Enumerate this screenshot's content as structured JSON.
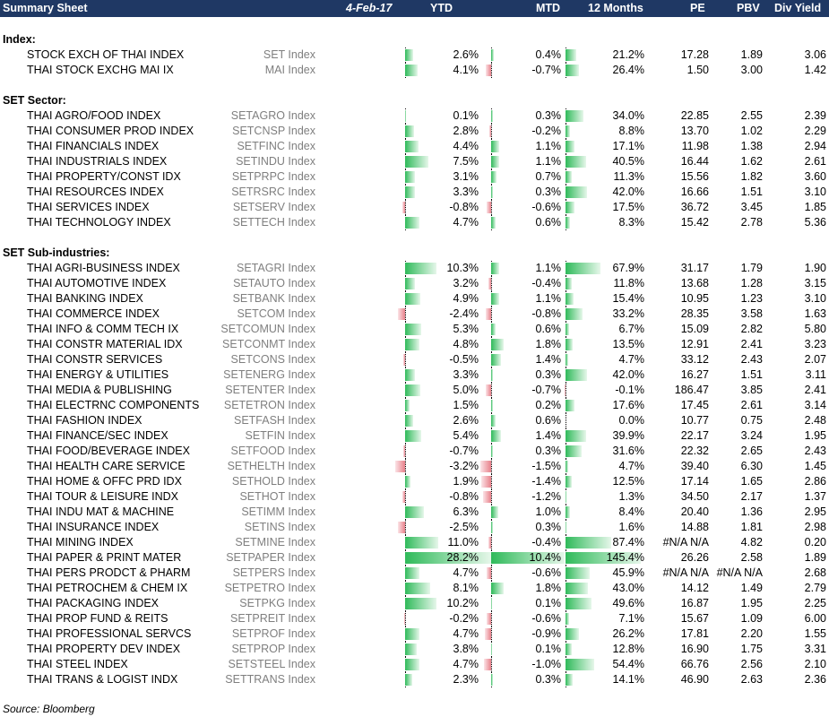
{
  "header": {
    "title": "Summary Sheet",
    "date": "4-Feb-17",
    "cols": [
      "YTD",
      "MTD",
      "12 Months",
      "PE",
      "PBV",
      "Div Yield"
    ]
  },
  "sections": [
    {
      "title": "Index:",
      "rows": [
        {
          "name": "STOCK EXCH OF THAI INDEX",
          "ticker": "SET Index",
          "ytd": "2.6%",
          "mtd": "0.4%",
          "m12": "21.2%",
          "pe": "17.28",
          "pbv": "1.89",
          "dy": "3.06",
          "ytd_v": 2.6,
          "mtd_v": 0.4,
          "m12_v": 21.2
        },
        {
          "name": "THAI STOCK EXCHG MAI IX",
          "ticker": "MAI Index",
          "ytd": "4.1%",
          "mtd": "-0.7%",
          "m12": "26.4%",
          "pe": "1.50",
          "pbv": "3.00",
          "dy": "1.42",
          "ytd_v": 4.1,
          "mtd_v": -0.7,
          "m12_v": 26.4
        }
      ]
    },
    {
      "title": "SET Sector:",
      "rows": [
        {
          "name": "THAI AGRO/FOOD INDEX",
          "ticker": "SETAGRO Index",
          "ytd": "0.1%",
          "mtd": "0.3%",
          "m12": "34.0%",
          "pe": "22.85",
          "pbv": "2.55",
          "dy": "2.39",
          "ytd_v": 0.1,
          "mtd_v": 0.3,
          "m12_v": 34.0
        },
        {
          "name": "THAI CONSUMER PROD INDEX",
          "ticker": "SETCNSP Index",
          "ytd": "2.8%",
          "mtd": "-0.2%",
          "m12": "8.8%",
          "pe": "13.70",
          "pbv": "1.02",
          "dy": "2.29",
          "ytd_v": 2.8,
          "mtd_v": -0.2,
          "m12_v": 8.8
        },
        {
          "name": "THAI FINANCIALS INDEX",
          "ticker": "SETFINC Index",
          "ytd": "4.4%",
          "mtd": "1.1%",
          "m12": "17.1%",
          "pe": "11.98",
          "pbv": "1.38",
          "dy": "2.94",
          "ytd_v": 4.4,
          "mtd_v": 1.1,
          "m12_v": 17.1
        },
        {
          "name": "THAI INDUSTRIALS INDEX",
          "ticker": "SETINDU Index",
          "ytd": "7.5%",
          "mtd": "1.1%",
          "m12": "40.5%",
          "pe": "16.44",
          "pbv": "1.62",
          "dy": "2.61",
          "ytd_v": 7.5,
          "mtd_v": 1.1,
          "m12_v": 40.5
        },
        {
          "name": "THAI PROPERTY/CONST IDX",
          "ticker": "SETPRPC Index",
          "ytd": "3.1%",
          "mtd": "0.7%",
          "m12": "11.3%",
          "pe": "15.56",
          "pbv": "1.82",
          "dy": "3.60",
          "ytd_v": 3.1,
          "mtd_v": 0.7,
          "m12_v": 11.3
        },
        {
          "name": "THAI RESOURCES INDEX",
          "ticker": "SETRSRC Index",
          "ytd": "3.3%",
          "mtd": "0.3%",
          "m12": "42.0%",
          "pe": "16.66",
          "pbv": "1.51",
          "dy": "3.10",
          "ytd_v": 3.3,
          "mtd_v": 0.3,
          "m12_v": 42.0
        },
        {
          "name": "THAI SERVICES INDEX",
          "ticker": "SETSERV Index",
          "ytd": "-0.8%",
          "mtd": "-0.6%",
          "m12": "17.5%",
          "pe": "36.72",
          "pbv": "3.45",
          "dy": "1.85",
          "ytd_v": -0.8,
          "mtd_v": -0.6,
          "m12_v": 17.5
        },
        {
          "name": "THAI TECHNOLOGY INDEX",
          "ticker": "SETTECH Index",
          "ytd": "4.7%",
          "mtd": "0.6%",
          "m12": "8.3%",
          "pe": "15.42",
          "pbv": "2.78",
          "dy": "5.36",
          "ytd_v": 4.7,
          "mtd_v": 0.6,
          "m12_v": 8.3
        }
      ]
    },
    {
      "title": "SET Sub-industries:",
      "rows": [
        {
          "name": "THAI AGRI-BUSINESS INDEX",
          "ticker": "SETAGRI Index",
          "ytd": "10.3%",
          "mtd": "1.1%",
          "m12": "67.9%",
          "pe": "31.17",
          "pbv": "1.79",
          "dy": "1.90",
          "ytd_v": 10.3,
          "mtd_v": 1.1,
          "m12_v": 67.9
        },
        {
          "name": "THAI AUTOMOTIVE INDEX",
          "ticker": "SETAUTO Index",
          "ytd": "3.2%",
          "mtd": "-0.4%",
          "m12": "11.8%",
          "pe": "13.68",
          "pbv": "1.28",
          "dy": "3.15",
          "ytd_v": 3.2,
          "mtd_v": -0.4,
          "m12_v": 11.8
        },
        {
          "name": "THAI BANKING INDEX",
          "ticker": "SETBANK Index",
          "ytd": "4.9%",
          "mtd": "1.1%",
          "m12": "15.4%",
          "pe": "10.95",
          "pbv": "1.23",
          "dy": "3.10",
          "ytd_v": 4.9,
          "mtd_v": 1.1,
          "m12_v": 15.4
        },
        {
          "name": "THAI COMMERCE INDEX",
          "ticker": "SETCOM Index",
          "ytd": "-2.4%",
          "mtd": "-0.8%",
          "m12": "33.2%",
          "pe": "28.35",
          "pbv": "3.58",
          "dy": "1.63",
          "ytd_v": -2.4,
          "mtd_v": -0.8,
          "m12_v": 33.2
        },
        {
          "name": "THAI INFO & COMM TECH IX",
          "ticker": "SETCOMUN Index",
          "ytd": "5.3%",
          "mtd": "0.6%",
          "m12": "6.7%",
          "pe": "15.09",
          "pbv": "2.82",
          "dy": "5.80",
          "ytd_v": 5.3,
          "mtd_v": 0.6,
          "m12_v": 6.7
        },
        {
          "name": "THAI CONSTR MATERIAL IDX",
          "ticker": "SETCONMT Index",
          "ytd": "4.8%",
          "mtd": "1.8%",
          "m12": "13.5%",
          "pe": "12.91",
          "pbv": "2.41",
          "dy": "3.23",
          "ytd_v": 4.8,
          "mtd_v": 1.8,
          "m12_v": 13.5
        },
        {
          "name": "THAI CONSTR SERVICES",
          "ticker": "SETCONS Index",
          "ytd": "-0.5%",
          "mtd": "1.4%",
          "m12": "4.7%",
          "pe": "33.12",
          "pbv": "2.43",
          "dy": "2.07",
          "ytd_v": -0.5,
          "mtd_v": 1.4,
          "m12_v": 4.7
        },
        {
          "name": "THAI ENERGY & UTILITIES",
          "ticker": "SETENERG Index",
          "ytd": "3.3%",
          "mtd": "0.3%",
          "m12": "42.0%",
          "pe": "16.27",
          "pbv": "1.51",
          "dy": "3.11",
          "ytd_v": 3.3,
          "mtd_v": 0.3,
          "m12_v": 42.0
        },
        {
          "name": "THAI MEDIA & PUBLISHING",
          "ticker": "SETENTER Index",
          "ytd": "5.0%",
          "mtd": "-0.7%",
          "m12": "-0.1%",
          "pe": "186.47",
          "pbv": "3.85",
          "dy": "2.41",
          "ytd_v": 5.0,
          "mtd_v": -0.7,
          "m12_v": -0.1
        },
        {
          "name": "THAI ELECTRNC COMPONENTS",
          "ticker": "SETETRON Index",
          "ytd": "1.5%",
          "mtd": "0.2%",
          "m12": "17.6%",
          "pe": "17.45",
          "pbv": "2.61",
          "dy": "3.14",
          "ytd_v": 1.5,
          "mtd_v": 0.2,
          "m12_v": 17.6
        },
        {
          "name": "THAI FASHION INDEX",
          "ticker": "SETFASH Index",
          "ytd": "2.6%",
          "mtd": "0.6%",
          "m12": "0.0%",
          "pe": "10.77",
          "pbv": "0.75",
          "dy": "2.48",
          "ytd_v": 2.6,
          "mtd_v": 0.6,
          "m12_v": 0.0
        },
        {
          "name": "THAI FINANCE/SEC INDEX",
          "ticker": "SETFIN Index",
          "ytd": "5.4%",
          "mtd": "1.4%",
          "m12": "39.9%",
          "pe": "22.17",
          "pbv": "3.24",
          "dy": "1.95",
          "ytd_v": 5.4,
          "mtd_v": 1.4,
          "m12_v": 39.9
        },
        {
          "name": "THAI FOOD/BEVERAGE INDEX",
          "ticker": "SETFOOD Index",
          "ytd": "-0.7%",
          "mtd": "0.3%",
          "m12": "31.6%",
          "pe": "22.32",
          "pbv": "2.65",
          "dy": "2.43",
          "ytd_v": -0.7,
          "mtd_v": 0.3,
          "m12_v": 31.6
        },
        {
          "name": "THAI HEALTH CARE SERVICE",
          "ticker": "SETHELTH Index",
          "ytd": "-3.2%",
          "mtd": "-1.5%",
          "m12": "4.7%",
          "pe": "39.40",
          "pbv": "6.30",
          "dy": "1.45",
          "ytd_v": -3.2,
          "mtd_v": -1.5,
          "m12_v": 4.7
        },
        {
          "name": "THAI HOME & OFFC PRD IDX",
          "ticker": "SETHOLD Index",
          "ytd": "1.9%",
          "mtd": "-1.4%",
          "m12": "12.5%",
          "pe": "17.14",
          "pbv": "1.65",
          "dy": "2.86",
          "ytd_v": 1.9,
          "mtd_v": -1.4,
          "m12_v": 12.5
        },
        {
          "name": "THAI TOUR & LEISURE INDX",
          "ticker": "SETHOT Index",
          "ytd": "-0.8%",
          "mtd": "-1.2%",
          "m12": "1.3%",
          "pe": "34.50",
          "pbv": "2.17",
          "dy": "1.37",
          "ytd_v": -0.8,
          "mtd_v": -1.2,
          "m12_v": 1.3
        },
        {
          "name": "THAI INDU MAT & MACHINE",
          "ticker": "SETIMM Index",
          "ytd": "6.3%",
          "mtd": "1.0%",
          "m12": "8.4%",
          "pe": "20.40",
          "pbv": "1.36",
          "dy": "2.95",
          "ytd_v": 6.3,
          "mtd_v": 1.0,
          "m12_v": 8.4
        },
        {
          "name": "THAI INSURANCE INDEX",
          "ticker": "SETINS Index",
          "ytd": "-2.5%",
          "mtd": "0.3%",
          "m12": "1.6%",
          "pe": "14.88",
          "pbv": "1.81",
          "dy": "2.98",
          "ytd_v": -2.5,
          "mtd_v": 0.3,
          "m12_v": 1.6
        },
        {
          "name": "THAI MINING INDEX",
          "ticker": "SETMINE Index",
          "ytd": "11.0%",
          "mtd": "-0.4%",
          "m12": "87.4%",
          "pe": "#N/A N/A",
          "pbv": "4.82",
          "dy": "0.20",
          "ytd_v": 11.0,
          "mtd_v": -0.4,
          "m12_v": 87.4
        },
        {
          "name": "THAI PAPER & PRINT MATER",
          "ticker": "SETPAPER Index",
          "ytd": "28.2%",
          "mtd": "10.4%",
          "m12": "145.4%",
          "pe": "26.26",
          "pbv": "2.58",
          "dy": "1.89",
          "ytd_v": 28.2,
          "mtd_v": 10.4,
          "m12_v": 145.4
        },
        {
          "name": "THAI PERS PRODCT & PHARM",
          "ticker": "SETPERS Index",
          "ytd": "4.7%",
          "mtd": "-0.6%",
          "m12": "45.9%",
          "pe": "#N/A N/A",
          "pbv": "#N/A N/A",
          "dy": "2.68",
          "ytd_v": 4.7,
          "mtd_v": -0.6,
          "m12_v": 45.9
        },
        {
          "name": "THAI PETROCHEM & CHEM IX",
          "ticker": "SETPETRO Index",
          "ytd": "8.1%",
          "mtd": "1.8%",
          "m12": "43.0%",
          "pe": "14.12",
          "pbv": "1.49",
          "dy": "2.79",
          "ytd_v": 8.1,
          "mtd_v": 1.8,
          "m12_v": 43.0
        },
        {
          "name": "THAI PACKAGING INDEX",
          "ticker": "SETPKG Index",
          "ytd": "10.2%",
          "mtd": "0.1%",
          "m12": "49.6%",
          "pe": "16.87",
          "pbv": "1.95",
          "dy": "2.25",
          "ytd_v": 10.2,
          "mtd_v": 0.1,
          "m12_v": 49.6
        },
        {
          "name": "THAI PROP FUND & REITS",
          "ticker": "SETPREIT Index",
          "ytd": "-0.2%",
          "mtd": "-0.6%",
          "m12": "7.1%",
          "pe": "15.67",
          "pbv": "1.09",
          "dy": "6.00",
          "ytd_v": -0.2,
          "mtd_v": -0.6,
          "m12_v": 7.1
        },
        {
          "name": "THAI PROFESSIONAL SERVCS",
          "ticker": "SETPROF Index",
          "ytd": "4.7%",
          "mtd": "-0.9%",
          "m12": "26.2%",
          "pe": "17.81",
          "pbv": "2.20",
          "dy": "1.55",
          "ytd_v": 4.7,
          "mtd_v": -0.9,
          "m12_v": 26.2
        },
        {
          "name": "THAI PROPERTY DEV INDEX",
          "ticker": "SETPROP Index",
          "ytd": "3.8%",
          "mtd": "0.1%",
          "m12": "12.8%",
          "pe": "16.90",
          "pbv": "1.75",
          "dy": "3.31",
          "ytd_v": 3.8,
          "mtd_v": 0.1,
          "m12_v": 12.8
        },
        {
          "name": "THAI STEEL INDEX",
          "ticker": "SETSTEEL Index",
          "ytd": "4.7%",
          "mtd": "-1.0%",
          "m12": "54.4%",
          "pe": "66.76",
          "pbv": "2.56",
          "dy": "2.10",
          "ytd_v": 4.7,
          "mtd_v": -1.0,
          "m12_v": 54.4
        },
        {
          "name": "THAI TRANS & LOGIST INDX",
          "ticker": "SETTRANS Index",
          "ytd": "2.3%",
          "mtd": "0.3%",
          "m12": "14.1%",
          "pe": "46.90",
          "pbv": "2.63",
          "dy": "2.36",
          "ytd_v": 2.3,
          "mtd_v": 0.3,
          "m12_v": 14.1
        }
      ]
    }
  ],
  "source": "Source: Bloomberg",
  "colors": {
    "header_bg": "#1f3864",
    "positive": "#2fba5a",
    "negative": "#e8808a",
    "ticker_text": "#7f7f7f"
  }
}
